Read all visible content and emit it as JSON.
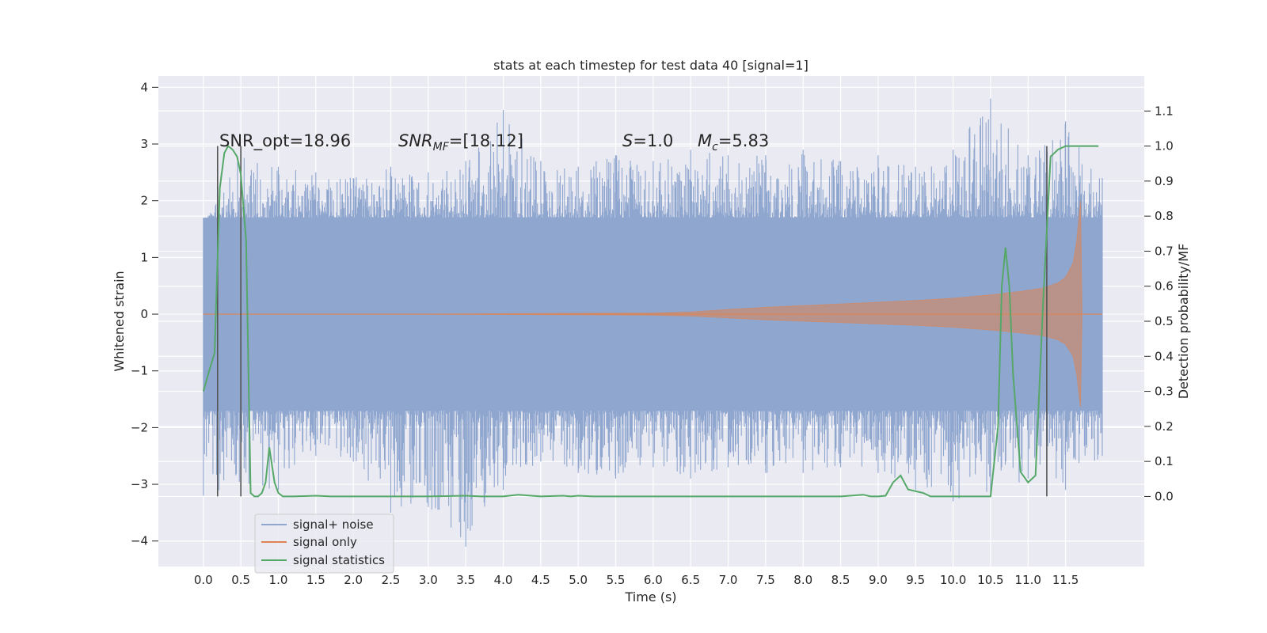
{
  "chart_data": {
    "type": "line",
    "title": "stats at each timestep for test data 40 [signal=1]",
    "xlabel": "Time (s)",
    "ylabel": "Whitened strain",
    "y2label": "Detection probability/MF",
    "xlim": [
      -0.6,
      12.55
    ],
    "ylim": [
      -4.45,
      4.2
    ],
    "y2lim": [
      -0.2,
      1.2
    ],
    "xticks": [
      0.0,
      0.5,
      1.0,
      1.5,
      2.0,
      2.5,
      3.0,
      3.5,
      4.0,
      4.5,
      5.0,
      5.5,
      6.0,
      6.5,
      7.0,
      7.5,
      8.0,
      8.5,
      9.0,
      9.5,
      10.0,
      10.5,
      11.0,
      11.5
    ],
    "xtick_labels": [
      "0.0",
      "0.5",
      "1.0",
      "1.5",
      "2.0",
      "2.5",
      "3.0",
      "3.5",
      "4.0",
      "4.5",
      "5.0",
      "5.5",
      "6.0",
      "6.5",
      "7.0",
      "7.5",
      "8.0",
      "8.5",
      "9.0",
      "9.5",
      "10.0",
      "10.5",
      "11.0",
      "11.5"
    ],
    "yticks": [
      4,
      3,
      2,
      1,
      0,
      -1,
      -2,
      -3,
      -4
    ],
    "ytick_labels": [
      "4",
      "3",
      "2",
      "1",
      "0",
      "−1",
      "−2",
      "−3",
      "−4"
    ],
    "y2ticks": [
      1.1,
      1.0,
      0.9,
      0.8,
      0.7,
      0.6,
      0.5,
      0.4,
      0.3,
      0.2,
      0.1,
      0.0
    ],
    "y2tick_labels": [
      "1.1",
      "1.0",
      "0.9",
      "0.8",
      "0.7",
      "0.6",
      "0.5",
      "0.4",
      "0.3",
      "0.2",
      "0.1",
      "0.0"
    ],
    "grid": true,
    "legend_position": "lower-left",
    "annotations": [
      "SNR_opt=18.96",
      "SNR_MF=[18.12]",
      "S=1.0",
      "M_c=5.83"
    ],
    "colors": {
      "plot_bg": "#eaeaf2",
      "grid": "#ffffff",
      "signal_noise": "#8fa6cf",
      "signal_only": "#dd8452",
      "signal_statistics": "#55a868",
      "vline": "#555555"
    },
    "vlines": [
      0.19,
      0.5,
      11.25
    ],
    "series": [
      {
        "name": "signal+ noise",
        "x": [
          0.0,
          0.5,
          1.0,
          1.5,
          2.0,
          2.5,
          3.0,
          3.5,
          4.0,
          4.5,
          5.0,
          5.5,
          6.0,
          6.5,
          7.0,
          7.5,
          8.0,
          8.5,
          9.0,
          9.5,
          10.0,
          10.5,
          11.0,
          11.5,
          11.99
        ],
        "upper": [
          1.6,
          2.8,
          2.6,
          2.5,
          2.4,
          2.6,
          2.5,
          2.7,
          3.6,
          2.7,
          2.6,
          2.8,
          2.7,
          2.9,
          2.8,
          2.8,
          2.9,
          2.7,
          2.8,
          2.6,
          2.9,
          3.8,
          2.8,
          3.4,
          2.4
        ],
        "lower": [
          -3.2,
          -3.0,
          -3.1,
          -2.5,
          -2.6,
          -3.5,
          -3.4,
          -4.1,
          -3.1,
          -2.6,
          -2.8,
          -2.9,
          -2.7,
          -2.9,
          -2.7,
          -2.8,
          -2.8,
          -2.7,
          -2.8,
          -3.1,
          -3.3,
          -3.2,
          -2.9,
          -3.1,
          -2.5
        ],
        "body": 1.7
      },
      {
        "name": "signal only",
        "x": [
          0.0,
          3.0,
          6.0,
          6.5,
          7.0,
          7.5,
          8.0,
          8.5,
          9.0,
          9.5,
          10.0,
          10.5,
          10.9,
          11.2,
          11.4,
          11.5,
          11.6,
          11.65,
          11.7,
          11.72,
          11.99
        ],
        "amplitude": [
          0.0,
          0.0,
          0.02,
          0.04,
          0.08,
          0.12,
          0.15,
          0.18,
          0.21,
          0.24,
          0.28,
          0.34,
          0.4,
          0.46,
          0.55,
          0.65,
          0.9,
          1.3,
          2.0,
          0.0,
          0.0
        ]
      },
      {
        "name": "signal statistics",
        "x": [
          0.0,
          0.08,
          0.15,
          0.22,
          0.28,
          0.33,
          0.39,
          0.45,
          0.5,
          0.57,
          0.63,
          0.68,
          0.73,
          0.78,
          0.83,
          0.88,
          0.95,
          1.0,
          1.06,
          1.2,
          1.5,
          1.7,
          2.0,
          3.0,
          3.5,
          3.7,
          4.0,
          4.2,
          4.5,
          4.8,
          4.9,
          5.0,
          5.2,
          6.0,
          7.0,
          8.0,
          8.5,
          8.8,
          8.9,
          9.0,
          9.1,
          9.2,
          9.3,
          9.4,
          9.5,
          9.6,
          9.7,
          9.8,
          10.0,
          10.5,
          10.6,
          10.65,
          10.7,
          10.75,
          10.8,
          10.9,
          11.0,
          11.1,
          11.2,
          11.3,
          11.4,
          11.5,
          11.7,
          11.94
        ],
        "values": [
          0.3,
          0.36,
          0.41,
          0.88,
          0.98,
          1.0,
          0.99,
          0.97,
          0.92,
          0.73,
          0.01,
          0.0,
          0.0,
          0.01,
          0.04,
          0.14,
          0.04,
          0.01,
          0.0,
          0.0,
          0.002,
          0.0,
          0.0,
          0.0,
          0.002,
          0.0,
          0.0,
          0.005,
          0.0,
          0.002,
          0.0,
          0.002,
          0.0,
          0.0,
          0.0,
          0.0,
          0.0,
          0.005,
          0.0,
          0.0,
          0.002,
          0.04,
          0.06,
          0.02,
          0.015,
          0.01,
          0.0,
          0.0,
          0.0,
          0.0,
          0.2,
          0.6,
          0.71,
          0.6,
          0.35,
          0.07,
          0.04,
          0.06,
          0.55,
          0.97,
          0.99,
          1.0,
          1.0,
          1.0
        ]
      }
    ]
  }
}
